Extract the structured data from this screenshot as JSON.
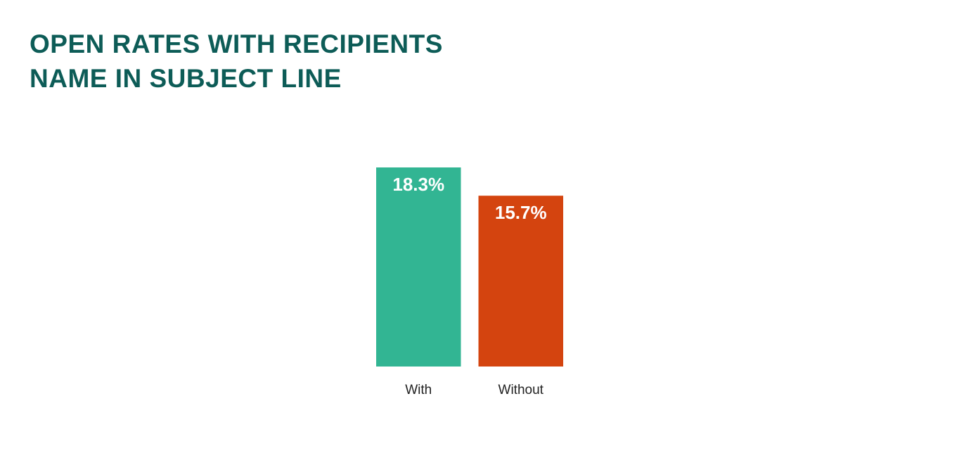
{
  "chart_data": {
    "type": "bar",
    "title": "OPEN RATES WITH RECIPIENTS NAME IN SUBJECT LINE",
    "categories": [
      "With",
      "Without"
    ],
    "values": [
      18.3,
      15.7
    ],
    "value_labels": [
      "18.3%",
      "15.7%"
    ],
    "colors": [
      "#32b593",
      "#d4440f"
    ]
  }
}
